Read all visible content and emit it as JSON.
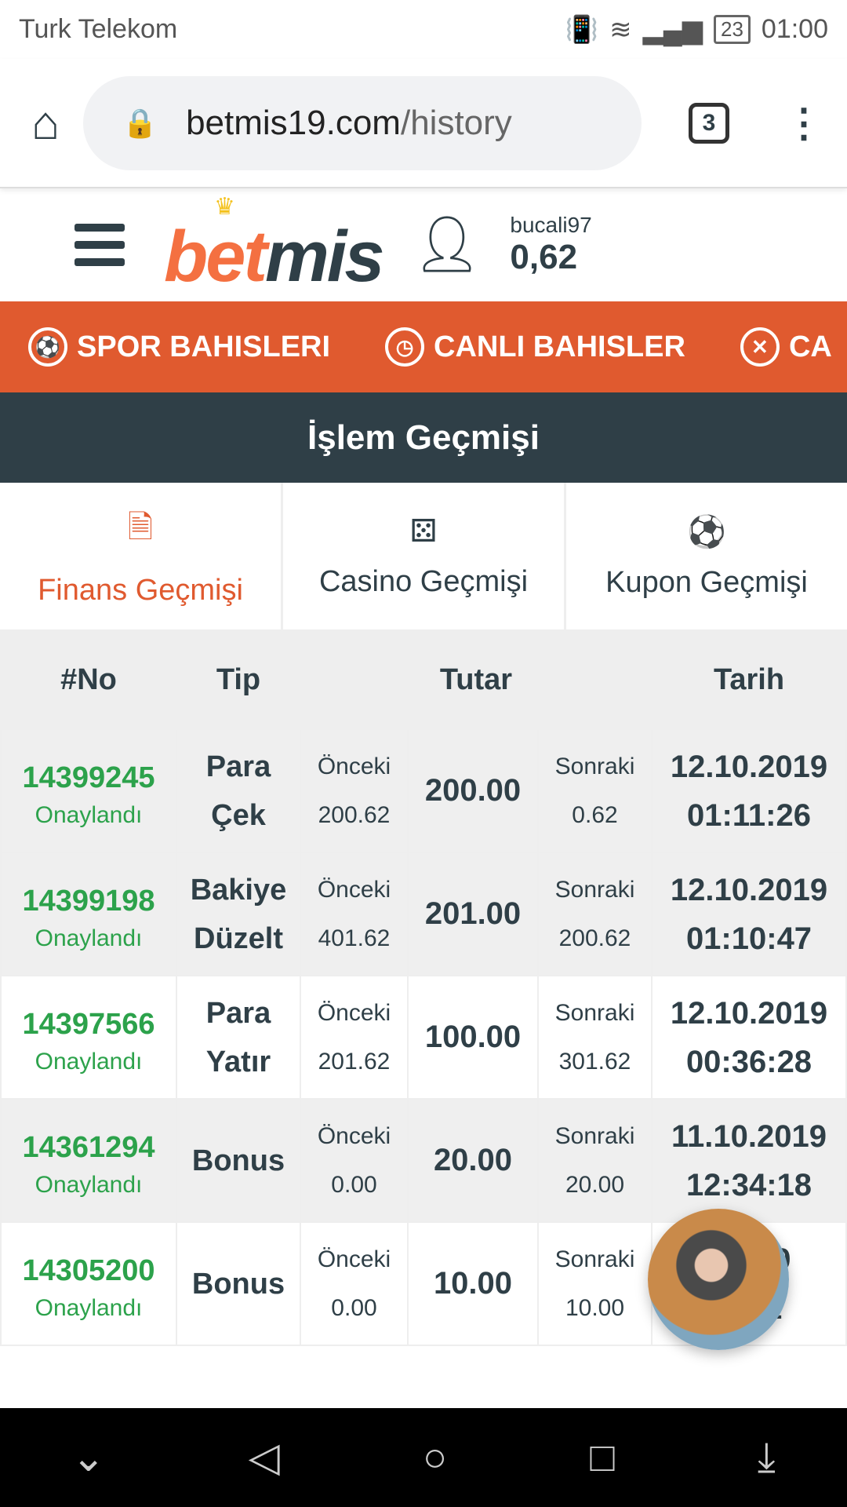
{
  "status": {
    "carrier": "Turk Telekom",
    "battery": "23",
    "time": "01:00"
  },
  "browser": {
    "url_domain": "betmis19.com",
    "url_path": "/history",
    "tab_count": "3"
  },
  "header": {
    "logo": "betmis",
    "logo_b": "bet",
    "logo_m": "mis",
    "username": "bucali97",
    "balance": "0,62"
  },
  "nav": [
    {
      "label": "SPOR BAHISLERI",
      "icon": "soccer-ball-icon"
    },
    {
      "label": "CANLI BAHISLER",
      "icon": "live-clock-icon"
    },
    {
      "label": "CA",
      "icon": "roulette-icon"
    }
  ],
  "page_title": "İşlem Geçmişi",
  "tabs": [
    {
      "label": "Finans Geçmişi",
      "icon": "finance-doc-icon"
    },
    {
      "label": "Casino Geçmişi",
      "icon": "dice-icon"
    },
    {
      "label": "Kupon Geçmişi",
      "icon": "soccer-ball-icon"
    }
  ],
  "colors": {
    "accent": "#e05a2f",
    "dark": "#2f3f47",
    "success": "#2ca24b"
  },
  "table": {
    "headers": {
      "no": "#No",
      "tip": "Tip",
      "tutar": "Tutar",
      "tarih": "Tarih"
    },
    "rows": [
      {
        "no": "14399245",
        "status": "Onaylandı",
        "tip1": "Para",
        "tip2": "Çek",
        "prev_label": "Önceki",
        "prev": "200.62",
        "amount": "200.00",
        "next_label": "Sonraki",
        "next": "0.62",
        "date": "12.10.2019",
        "time": "01:11:26"
      },
      {
        "no": "14399198",
        "status": "Onaylandı",
        "tip1": "Bakiye",
        "tip2": "Düzelt",
        "prev_label": "Önceki",
        "prev": "401.62",
        "amount": "201.00",
        "next_label": "Sonraki",
        "next": "200.62",
        "date": "12.10.2019",
        "time": "01:10:47"
      },
      {
        "no": "14397566",
        "status": "Onaylandı",
        "tip1": "Para",
        "tip2": "Yatır",
        "prev_label": "Önceki",
        "prev": "201.62",
        "amount": "100.00",
        "next_label": "Sonraki",
        "next": "301.62",
        "date": "12.10.2019",
        "time": "00:36:28"
      },
      {
        "no": "14361294",
        "status": "Onaylandı",
        "tip1": "Bonus",
        "tip2": "",
        "prev_label": "Önceki",
        "prev": "0.00",
        "amount": "20.00",
        "next_label": "Sonraki",
        "next": "20.00",
        "date": "11.10.2019",
        "time": "12:34:18"
      },
      {
        "no": "14305200",
        "status": "Onaylandı",
        "tip1": "Bonus",
        "tip2": "",
        "prev_label": "Önceki",
        "prev": "0.00",
        "amount": "10.00",
        "next_label": "Sonraki",
        "next": "10.00",
        "date": "…019",
        "time": "…21"
      }
    ]
  }
}
